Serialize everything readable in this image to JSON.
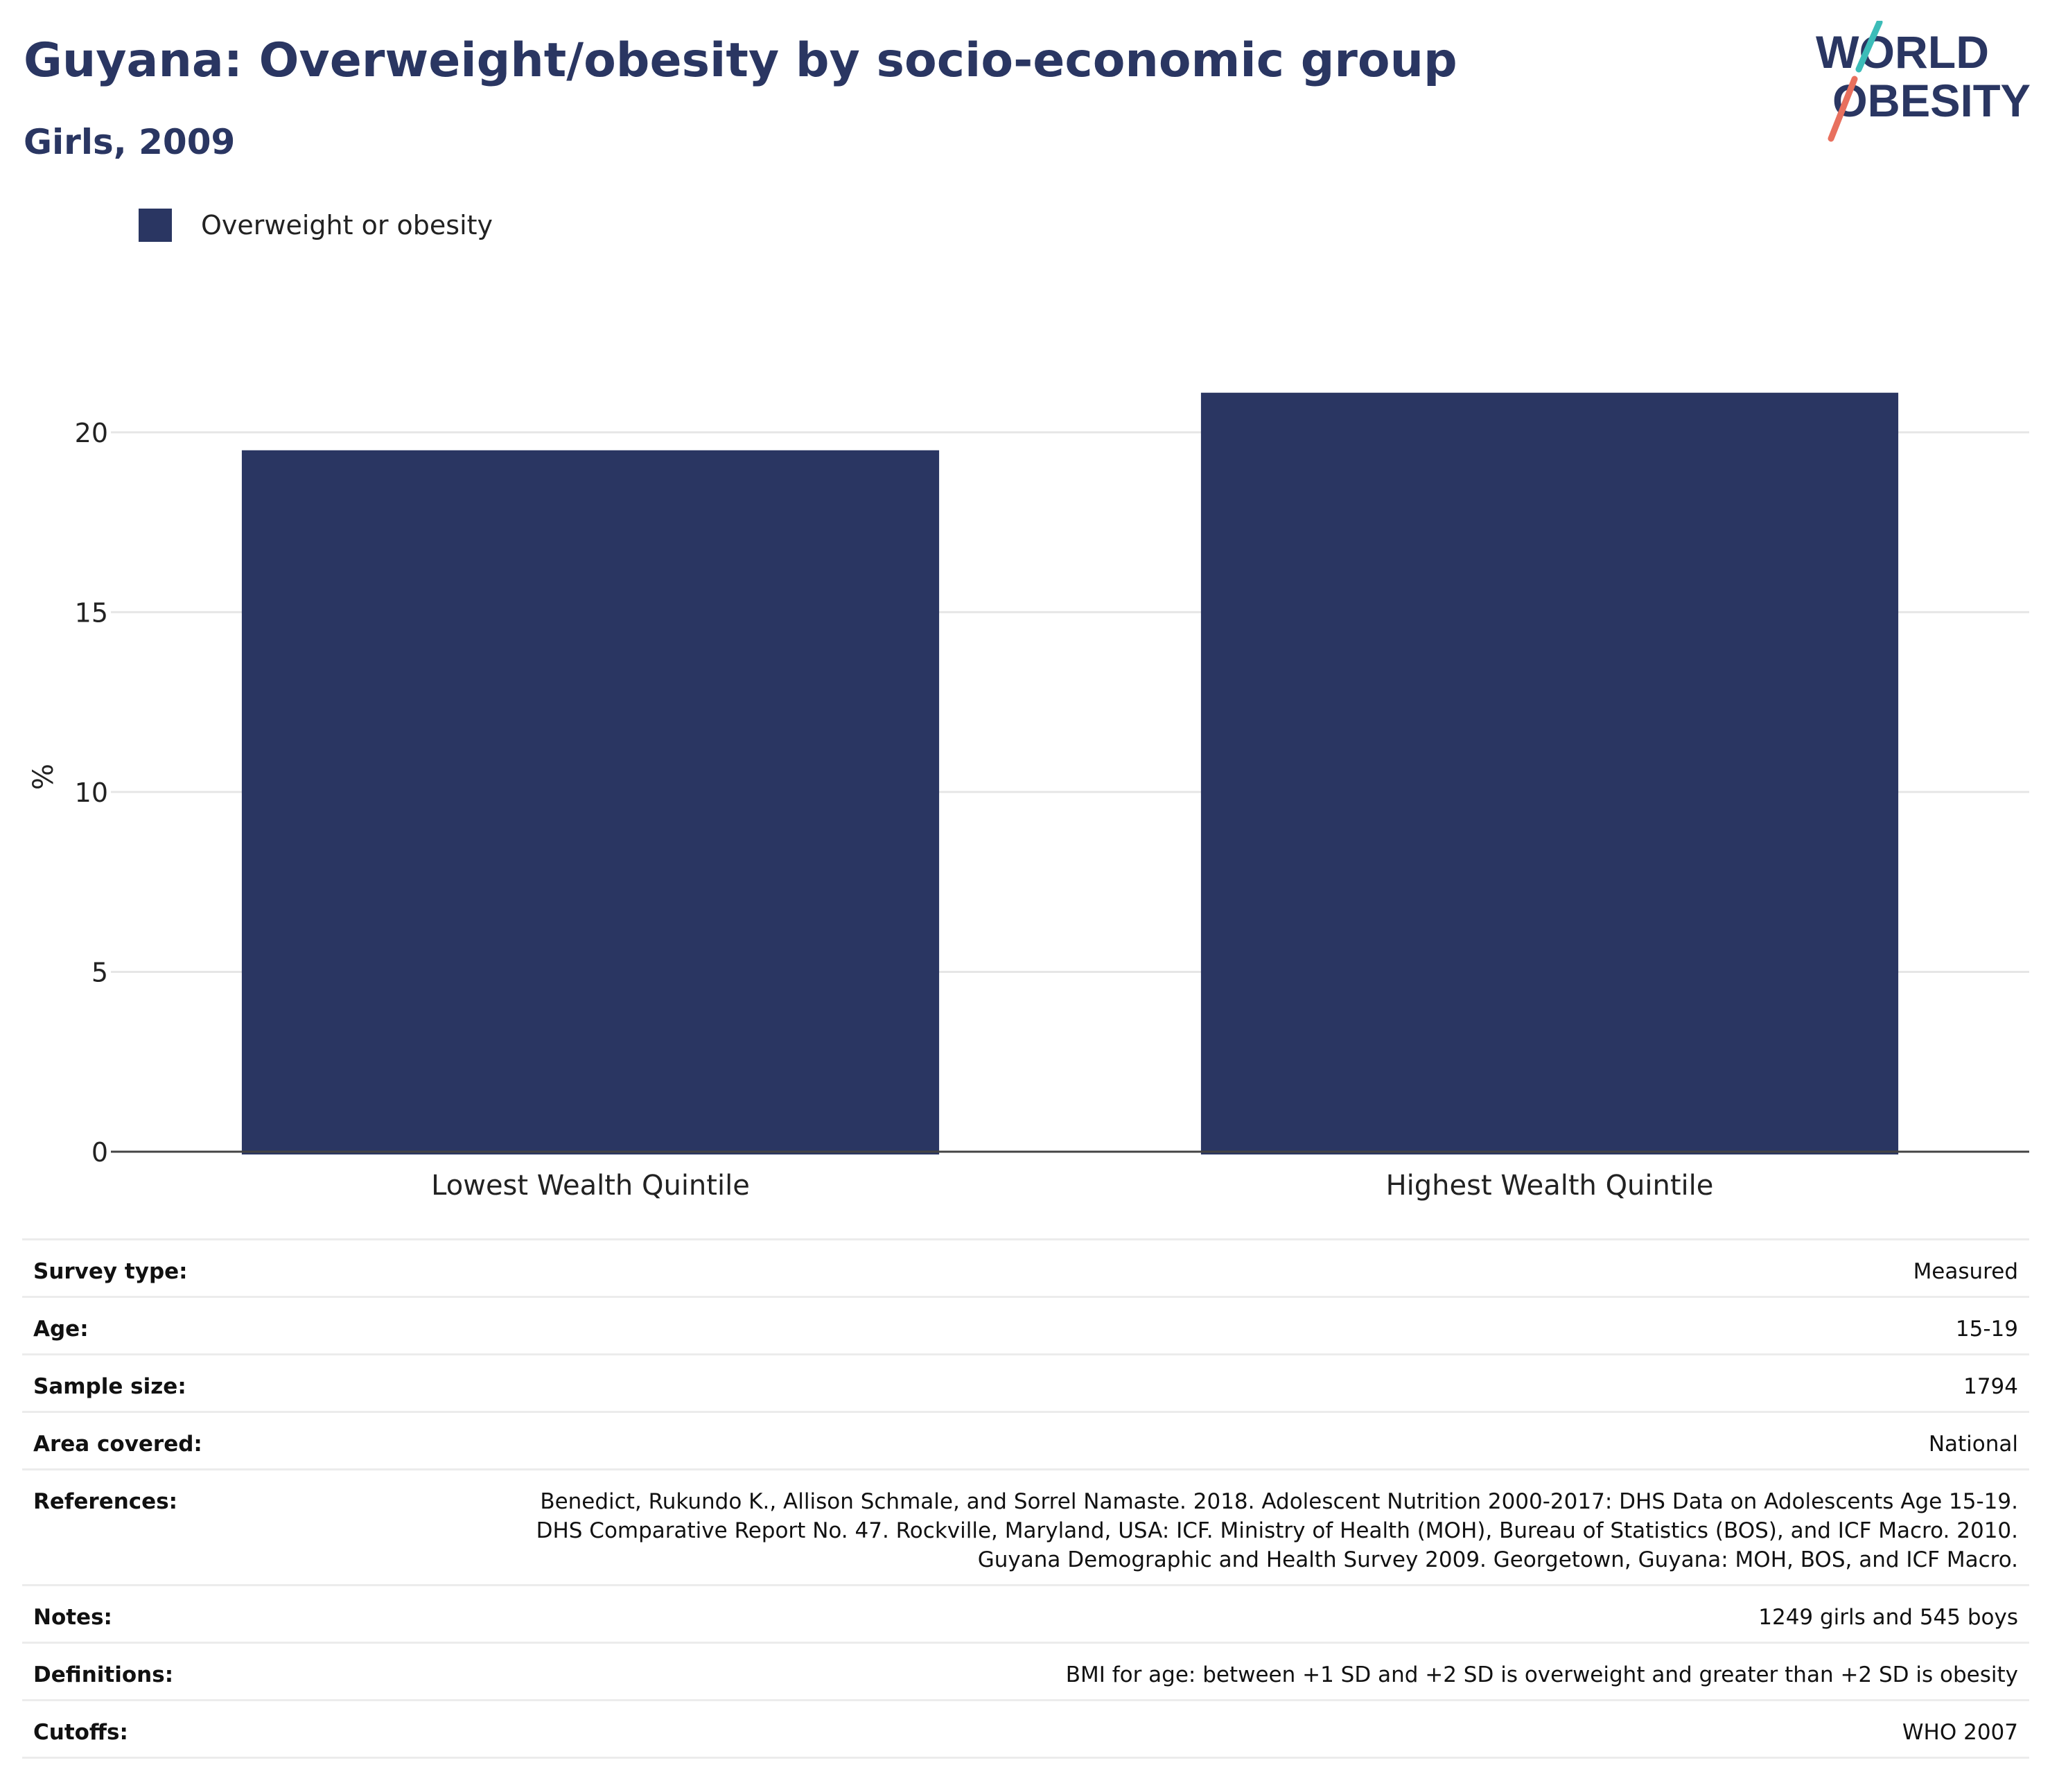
{
  "header": {
    "title": "Guyana: Overweight/obesity by socio-economic group",
    "subtitle": "Girls, 2009",
    "logo_text": [
      "WORLD",
      "OBESITY"
    ]
  },
  "colors": {
    "bar": "#2a3662",
    "title": "#2a3662",
    "logo_teal": "#3cbcb8",
    "logo_coral": "#e8705e",
    "grid": "#e6e6e6"
  },
  "legend": {
    "label": "Overweight or obesity"
  },
  "chart_data": {
    "type": "bar",
    "categories": [
      "Lowest Wealth Quintile",
      "Highest Wealth Quintile"
    ],
    "series": [
      {
        "name": "Overweight or obesity",
        "values": [
          19.5,
          21.1
        ]
      }
    ],
    "ylabel": "%",
    "xlabel": "",
    "ylim": [
      0,
      22
    ],
    "yticks": [
      0,
      5,
      10,
      15,
      20
    ],
    "grid": true,
    "legend_position": "top-left"
  },
  "info": [
    {
      "key": "Survey type:",
      "value": "Measured"
    },
    {
      "key": "Age:",
      "value": "15-19"
    },
    {
      "key": "Sample size:",
      "value": "1794"
    },
    {
      "key": "Area covered:",
      "value": "National"
    },
    {
      "key": "References:",
      "value": "Benedict, Rukundo K., Allison Schmale, and Sorrel Namaste. 2018. Adolescent Nutrition 2000-2017: DHS Data on Adolescents Age 15-19. DHS Comparative Report No. 47. Rockville, Maryland, USA: ICF. Ministry of Health (MOH), Bureau of Statistics (BOS), and ICF Macro. 2010. Guyana Demographic and Health Survey 2009. Georgetown, Guyana: MOH, BOS, and ICF Macro."
    },
    {
      "key": "Notes:",
      "value": "1249 girls and 545 boys"
    },
    {
      "key": "Definitions:",
      "value": "BMI for age: between +1 SD and +2 SD is overweight and greater than +2 SD is obesity"
    },
    {
      "key": "Cutoffs:",
      "value": "WHO 2007"
    }
  ]
}
